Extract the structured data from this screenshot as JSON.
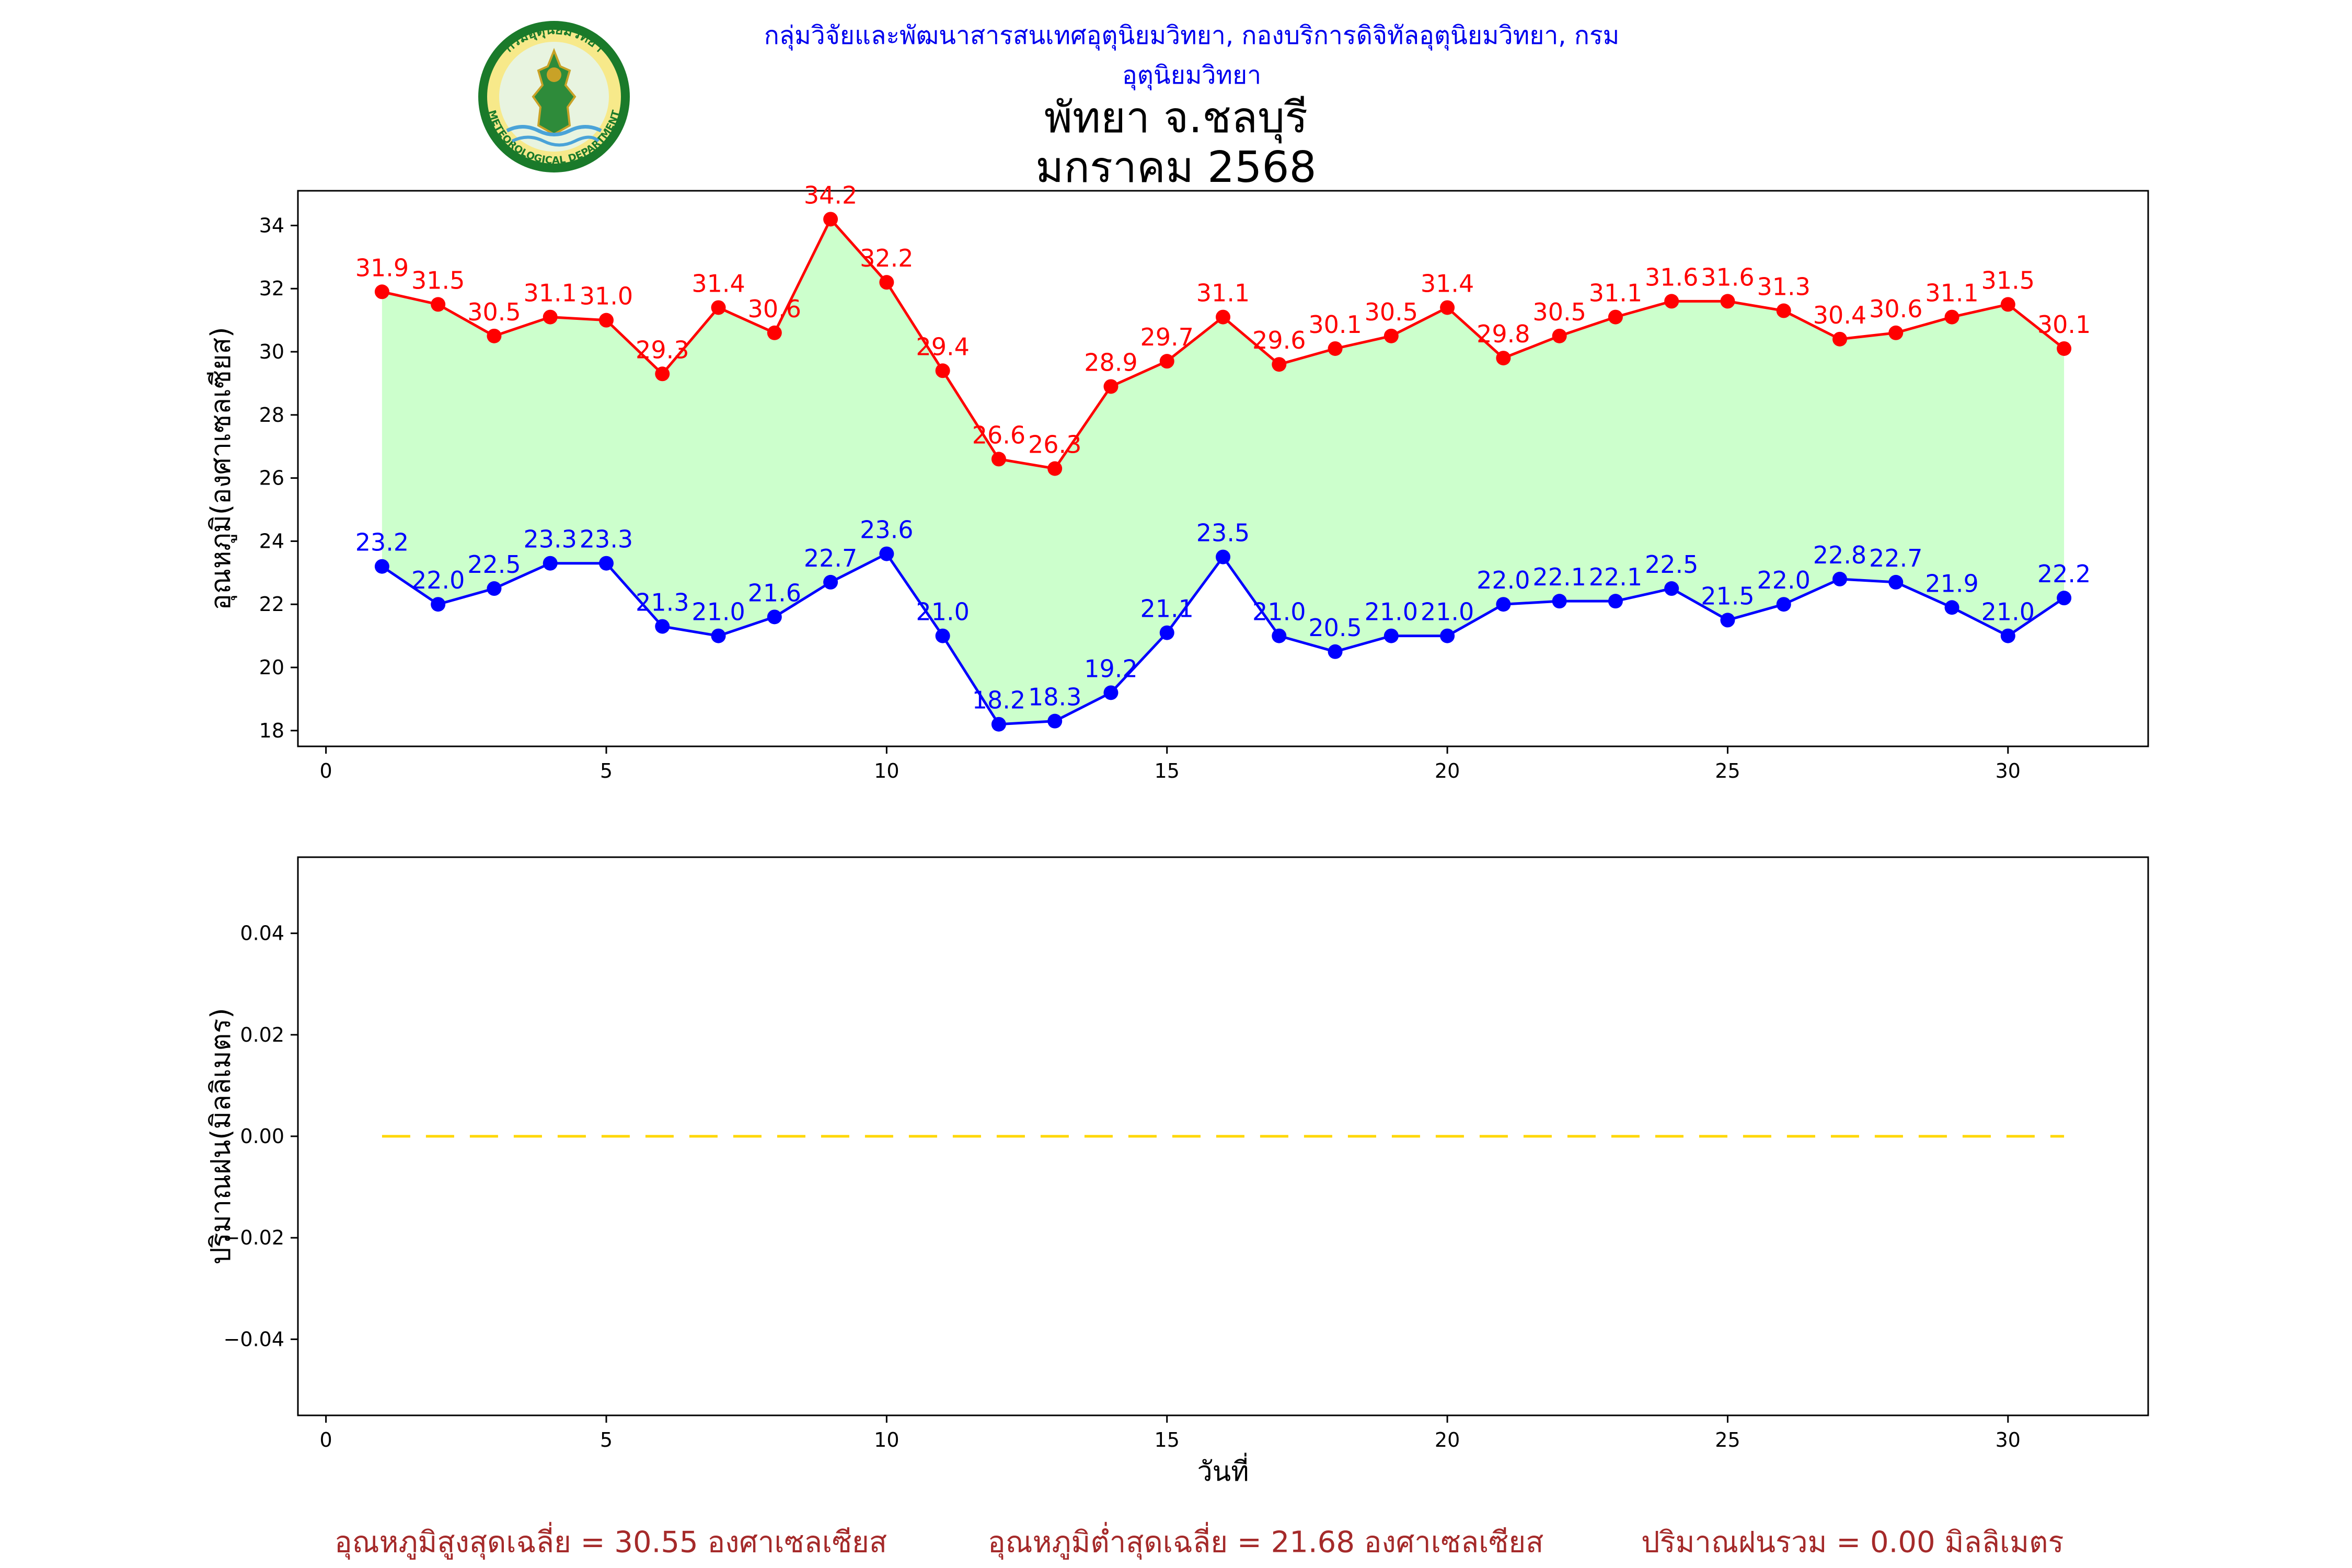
{
  "header": {
    "credit": "กลุ่มวิจัยและพัฒนาสารสนเทศอุตุนิยมวิทยา, กองบริการดิจิทัลอุตุนิยมวิทยา, กรมอุตุนิยมวิทยา",
    "title_line1": "พัทยา จ.ชลบุรี",
    "title_line2": "มกราคม 2568"
  },
  "logo": {
    "icon": "meteorological-department-seal-icon",
    "top_text": "กรมอุตุนิยมวิทยา",
    "bottom_text": "METEOROLOGICAL DEPARTMENT",
    "colors": {
      "ring": "#1a7a2a",
      "inner": "#e8f4e0",
      "figure": "#2e8b3a",
      "gold": "#c9a227",
      "water": "#4aa3d8"
    }
  },
  "chart_data": [
    {
      "type": "line",
      "panel": "temperature",
      "x": [
        1,
        2,
        3,
        4,
        5,
        6,
        7,
        8,
        9,
        10,
        11,
        12,
        13,
        14,
        15,
        16,
        17,
        18,
        19,
        20,
        21,
        22,
        23,
        24,
        25,
        26,
        27,
        28,
        29,
        30,
        31
      ],
      "series": [
        {
          "role": "max",
          "color": "#ff0000",
          "values": [
            31.9,
            31.5,
            30.5,
            31.1,
            31.0,
            29.3,
            31.4,
            30.6,
            34.2,
            32.2,
            29.4,
            26.6,
            26.3,
            28.9,
            29.7,
            31.1,
            29.6,
            30.1,
            30.5,
            31.4,
            29.8,
            30.5,
            31.1,
            31.6,
            31.6,
            31.3,
            30.4,
            30.6,
            31.1,
            31.5,
            30.1
          ]
        },
        {
          "role": "min",
          "color": "#0000ff",
          "values": [
            23.2,
            22.0,
            22.5,
            23.3,
            23.3,
            21.3,
            21.0,
            21.6,
            22.7,
            23.6,
            21.0,
            18.2,
            18.3,
            19.2,
            21.1,
            23.5,
            21.0,
            20.5,
            21.0,
            21.0,
            22.0,
            22.1,
            22.1,
            22.5,
            21.5,
            22.0,
            22.8,
            22.7,
            21.9,
            21.0,
            22.2
          ]
        }
      ],
      "fill_between_color": "#ccffcc",
      "ylabel": "อุณหภูมิ(องศาเซลเซียส)",
      "xlim": [
        -0.5,
        32.5
      ],
      "ylim": [
        17.5,
        35.1
      ],
      "xticks": [
        0,
        5,
        10,
        15,
        20,
        25,
        30
      ],
      "yticks": [
        18,
        20,
        22,
        24,
        26,
        28,
        30,
        32,
        34
      ],
      "grid": false
    },
    {
      "type": "line",
      "panel": "rainfall",
      "x": [
        1,
        2,
        3,
        4,
        5,
        6,
        7,
        8,
        9,
        10,
        11,
        12,
        13,
        14,
        15,
        16,
        17,
        18,
        19,
        20,
        21,
        22,
        23,
        24,
        25,
        26,
        27,
        28,
        29,
        30,
        31
      ],
      "series": [
        {
          "role": "rain",
          "color": "#ffd700",
          "line_style": "dashed",
          "values": [
            0,
            0,
            0,
            0,
            0,
            0,
            0,
            0,
            0,
            0,
            0,
            0,
            0,
            0,
            0,
            0,
            0,
            0,
            0,
            0,
            0,
            0,
            0,
            0,
            0,
            0,
            0,
            0,
            0,
            0,
            0
          ]
        }
      ],
      "xlabel": "วันที่",
      "ylabel": "ปริมาณฝน(มิลลิเมตร)",
      "xlim": [
        -0.5,
        32.5
      ],
      "ylim": [
        -0.055,
        0.055
      ],
      "xticks": [
        0,
        5,
        10,
        15,
        20,
        25,
        30
      ],
      "yticks": [
        -0.04,
        -0.02,
        0.0,
        0.02,
        0.04
      ],
      "ytick_labels": [
        "−0.04",
        "−0.02",
        "0.00",
        "0.02",
        "0.04"
      ],
      "grid": false
    }
  ],
  "footer": {
    "avg_max": "อุณหภูมิสูงสุดเฉลี่ย = 30.55 องศาเซลเซียส",
    "avg_min": "อุณหภูมิต่ำสุดเฉลี่ย = 21.68 องศาเซลเซียส",
    "total_rain": "ปริมาณฝนรวม = 0.00 มิลลิเมตร"
  }
}
